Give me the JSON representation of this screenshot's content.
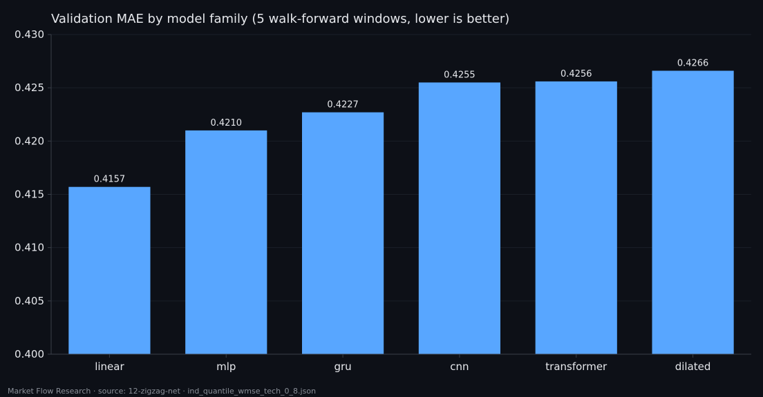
{
  "chart_data": {
    "type": "bar",
    "title": "Validation MAE by model family (5 walk-forward windows, lower is better)",
    "categories": [
      "linear",
      "mlp",
      "gru",
      "cnn",
      "transformer",
      "dilated"
    ],
    "values": [
      0.4157,
      0.421,
      0.4227,
      0.4255,
      0.4256,
      0.4266
    ],
    "data_labels": [
      "0.4157",
      "0.4210",
      "0.4227",
      "0.4255",
      "0.4256",
      "0.4266"
    ],
    "xlabel": "",
    "ylabel": "",
    "ylim": [
      0.4,
      0.43
    ],
    "yticks": [
      0.4,
      0.405,
      0.41,
      0.415,
      0.42,
      0.425,
      0.43
    ],
    "ytick_labels": [
      "0.400",
      "0.405",
      "0.410",
      "0.415",
      "0.420",
      "0.425",
      "0.430"
    ],
    "grid": true,
    "legend": "none",
    "colors": {
      "bar": "#58a6ff",
      "background": "#0d1017",
      "grid": "#1a1f28",
      "axis": "#3a3f48",
      "text": "#e6e8ec"
    }
  },
  "footer": {
    "text": "Market Flow Research · source: 12-zigzag-net · ind_quantile_wmse_tech_0_8.json"
  }
}
